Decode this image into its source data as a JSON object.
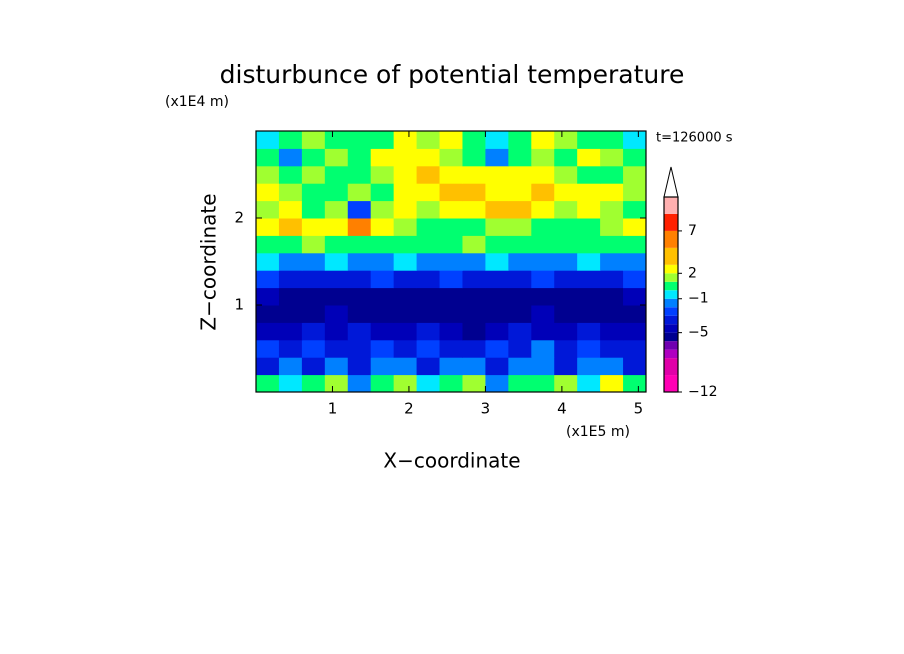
{
  "chart_data": {
    "type": "contour",
    "title": "disturbunce of potential temperature",
    "x_label": "X−coordinate",
    "y_label": "Z−coordinate",
    "x_unit": "(x1E5 m)",
    "y_unit": "(x1E4 m)",
    "annotation": "t=126000 s",
    "xlim": [
      0,
      5.1
    ],
    "ylim": [
      0,
      3
    ],
    "xticks": [
      1,
      2,
      3,
      4,
      5
    ],
    "yticks": [
      1,
      2
    ],
    "x": [
      0.15,
      0.45,
      0.75,
      1.05,
      1.35,
      1.65,
      1.95,
      2.25,
      2.55,
      2.85,
      3.15,
      3.45,
      3.75,
      4.05,
      4.35,
      4.65,
      4.95
    ],
    "y": [
      0.1,
      0.3,
      0.5,
      0.7,
      0.9,
      1.1,
      1.3,
      1.5,
      1.7,
      1.9,
      2.1,
      2.3,
      2.5,
      2.7,
      2.9
    ],
    "values": [
      [
        0.5,
        -0.5,
        0.5,
        1.5,
        -1.5,
        0.5,
        1.5,
        -0.5,
        0.5,
        1.5,
        -1.5,
        0.5,
        0.5,
        1.5,
        -0.5,
        2.5,
        0.5
      ],
      [
        -3.5,
        -1.5,
        -3.5,
        -1.5,
        -3.5,
        -1.5,
        -1.5,
        -3.5,
        -1.5,
        -1.5,
        -3.5,
        -1.5,
        -1.5,
        -3.5,
        -1.5,
        -1.5,
        -3.5
      ],
      [
        -2.5,
        -3.5,
        -2.5,
        -3.5,
        -3.5,
        -2.5,
        -3.5,
        -2.5,
        -3.5,
        -3.5,
        -2.5,
        -3.5,
        -1.5,
        -3.5,
        -2.5,
        -3.5,
        -3.5
      ],
      [
        -4.5,
        -4.5,
        -3.5,
        -4.5,
        -3.5,
        -4.5,
        -4.5,
        -3.5,
        -4.5,
        -5.5,
        -4.5,
        -3.5,
        -4.5,
        -4.5,
        -3.5,
        -4.5,
        -4.5
      ],
      [
        -5.5,
        -5.5,
        -5.5,
        -4.5,
        -5.5,
        -5.5,
        -5.5,
        -5.5,
        -5.5,
        -5.5,
        -5.5,
        -5.5,
        -4.5,
        -5.5,
        -5.5,
        -5.5,
        -5.5
      ],
      [
        -4.5,
        -5.5,
        -5.5,
        -5.5,
        -5.5,
        -5.5,
        -5.5,
        -5.5,
        -5.5,
        -5.5,
        -5.5,
        -5.5,
        -5.5,
        -5.5,
        -5.5,
        -5.5,
        -4.5
      ],
      [
        -2.5,
        -3.5,
        -3.5,
        -3.5,
        -3.5,
        -2.5,
        -3.5,
        -3.5,
        -2.5,
        -3.5,
        -3.5,
        -3.5,
        -2.5,
        -3.5,
        -3.5,
        -3.5,
        -2.5
      ],
      [
        -0.5,
        -1.5,
        -1.5,
        -0.5,
        -1.5,
        -1.5,
        -0.5,
        -1.5,
        -1.5,
        -1.5,
        -0.5,
        -1.5,
        -1.5,
        -1.5,
        -0.5,
        -1.5,
        -1.5
      ],
      [
        0.5,
        0.5,
        1.5,
        0.5,
        0.5,
        0.5,
        0.5,
        0.5,
        0.5,
        1.5,
        0.5,
        0.5,
        0.5,
        0.5,
        0.5,
        0.5,
        0.5
      ],
      [
        2.5,
        4,
        2.5,
        2.5,
        5.5,
        2.5,
        1.5,
        0.5,
        0.5,
        0.5,
        1.5,
        1.5,
        0.5,
        0.5,
        0.5,
        1.5,
        2.5
      ],
      [
        1.5,
        2.5,
        0.5,
        1.5,
        -2.5,
        1.5,
        2.5,
        1.5,
        2.5,
        2.5,
        4,
        4,
        2.5,
        1.5,
        2.5,
        1.5,
        0.5
      ],
      [
        2.5,
        1.5,
        0.5,
        0.5,
        1.5,
        0.5,
        2.5,
        2.5,
        4,
        4,
        2.5,
        2.5,
        4,
        2.5,
        2.5,
        2.5,
        1.5
      ],
      [
        1.5,
        0.5,
        1.5,
        0.5,
        0.5,
        1.5,
        2.5,
        4,
        2.5,
        2.5,
        2.5,
        2.5,
        2.5,
        1.5,
        0.5,
        0.5,
        1.5
      ],
      [
        0.5,
        -1.5,
        0.5,
        1.5,
        0.5,
        2.5,
        2.5,
        2.5,
        1.5,
        0.5,
        -1.5,
        0.5,
        1.5,
        0.5,
        2.5,
        1.5,
        0.5
      ],
      [
        -0.5,
        0.5,
        1.5,
        0.5,
        0.5,
        0.5,
        2.5,
        1.5,
        2.5,
        0.5,
        -0.5,
        0.5,
        2.5,
        1.5,
        0.5,
        0.5,
        -0.5
      ]
    ],
    "levels": [
      -12,
      -10,
      -8,
      -7,
      -6,
      -5,
      -4,
      -3,
      -2,
      -1,
      0,
      1,
      2,
      3,
      5,
      7,
      9,
      11
    ],
    "colors": [
      "#ff00b4",
      "#e000a8",
      "#b000c0",
      "#7000b0",
      "#000090",
      "#0000b8",
      "#0018d8",
      "#0040ff",
      "#0080ff",
      "#00e8ff",
      "#00ff70",
      "#a0ff30",
      "#ffff00",
      "#ffc000",
      "#ff8000",
      "#ff2000",
      "#ffb0b0"
    ],
    "clim": [
      -12,
      11
    ],
    "cticks": [
      {
        "value": -12,
        "label": "−12"
      },
      {
        "value": -5,
        "label": "−5"
      },
      {
        "value": -1,
        "label": "−1"
      },
      2,
      7
    ]
  }
}
